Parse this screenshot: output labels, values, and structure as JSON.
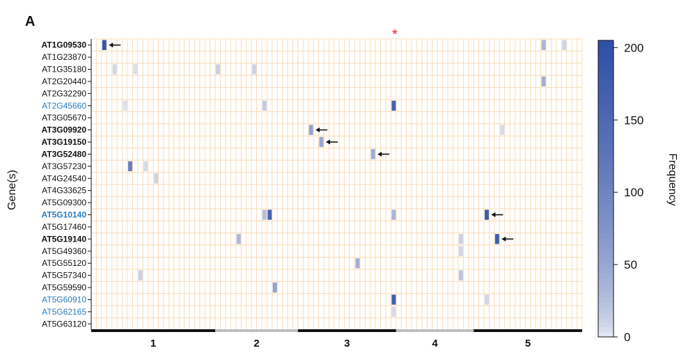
{
  "panel_letter": "A",
  "star_marker": "*",
  "colors": {
    "grid": "#f9dcb8",
    "axis": "#111111",
    "chrom_dark": "#111111",
    "chrom_light": "#bdbdbd",
    "gene_blue": "#2b7bb9",
    "gene_black": "#111111",
    "arrow": "#111111",
    "star": "#e8202a",
    "scale_low": "#f2f3f7",
    "scale_high": "#2f4fa6"
  },
  "chart_data": {
    "type": "heatmap",
    "ylabel": "Gene(s)",
    "colorbar_label": "Frequency",
    "colorbar_ticks": [
      0,
      50,
      100,
      150,
      200
    ],
    "colorbar_range": [
      0,
      205
    ],
    "n_columns": 95,
    "genes": [
      {
        "name": "AT1G09530",
        "style": "bold",
        "color": "black"
      },
      {
        "name": "AT1G23870",
        "style": "normal",
        "color": "black"
      },
      {
        "name": "AT1G35180",
        "style": "normal",
        "color": "black"
      },
      {
        "name": "AT2G20440",
        "style": "normal",
        "color": "black"
      },
      {
        "name": "AT2G32290",
        "style": "normal",
        "color": "black"
      },
      {
        "name": "AT2G45660",
        "style": "normal",
        "color": "blue"
      },
      {
        "name": "AT3G05670",
        "style": "normal",
        "color": "black"
      },
      {
        "name": "AT3G09920",
        "style": "bold",
        "color": "black"
      },
      {
        "name": "AT3G19150",
        "style": "bold",
        "color": "black"
      },
      {
        "name": "AT3G52480",
        "style": "bold",
        "color": "black"
      },
      {
        "name": "AT3G57230",
        "style": "normal",
        "color": "black"
      },
      {
        "name": "AT4G24540",
        "style": "normal",
        "color": "black"
      },
      {
        "name": "AT4G33625",
        "style": "normal",
        "color": "black"
      },
      {
        "name": "AT5G09300",
        "style": "normal",
        "color": "black"
      },
      {
        "name": "AT5G10140",
        "style": "bold",
        "color": "blue"
      },
      {
        "name": "AT5G17460",
        "style": "normal",
        "color": "black"
      },
      {
        "name": "AT5G19140",
        "style": "bold",
        "color": "black"
      },
      {
        "name": "AT5G49360",
        "style": "normal",
        "color": "black"
      },
      {
        "name": "AT5G55120",
        "style": "normal",
        "color": "black"
      },
      {
        "name": "AT5G57340",
        "style": "normal",
        "color": "black"
      },
      {
        "name": "AT5G59590",
        "style": "normal",
        "color": "black"
      },
      {
        "name": "AT5G60910",
        "style": "normal",
        "color": "blue"
      },
      {
        "name": "AT5G62165",
        "style": "normal",
        "color": "blue"
      },
      {
        "name": "AT5G63120",
        "style": "normal",
        "color": "black"
      }
    ],
    "chromosomes": [
      {
        "label": "1",
        "start_col": 0,
        "end_col": 23,
        "shade": "dark"
      },
      {
        "label": "2",
        "start_col": 24,
        "end_col": 39,
        "shade": "light"
      },
      {
        "label": "3",
        "start_col": 40,
        "end_col": 58,
        "shade": "dark"
      },
      {
        "label": "4",
        "start_col": 59,
        "end_col": 73,
        "shade": "light"
      },
      {
        "label": "5",
        "start_col": 74,
        "end_col": 94,
        "shade": "dark"
      }
    ],
    "star_col": 58,
    "cells": [
      {
        "gene": 0,
        "col": 2,
        "value": 190,
        "arrow": true
      },
      {
        "gene": 0,
        "col": 87,
        "value": 35
      },
      {
        "gene": 0,
        "col": 91,
        "value": 10
      },
      {
        "gene": 2,
        "col": 4,
        "value": 8
      },
      {
        "gene": 2,
        "col": 24,
        "value": 12
      },
      {
        "gene": 2,
        "col": 31,
        "value": 10
      },
      {
        "gene": 2,
        "col": 8,
        "value": 5
      },
      {
        "gene": 3,
        "col": 87,
        "value": 40
      },
      {
        "gene": 5,
        "col": 33,
        "value": 15
      },
      {
        "gene": 5,
        "col": 58,
        "value": 165
      },
      {
        "gene": 5,
        "col": 6,
        "value": 4
      },
      {
        "gene": 7,
        "col": 42,
        "value": 55,
        "arrow": true
      },
      {
        "gene": 7,
        "col": 79,
        "value": 6
      },
      {
        "gene": 8,
        "col": 44,
        "value": 50,
        "arrow": true
      },
      {
        "gene": 9,
        "col": 54,
        "value": 45,
        "arrow": true
      },
      {
        "gene": 10,
        "col": 7,
        "value": 110
      },
      {
        "gene": 10,
        "col": 10,
        "value": 6
      },
      {
        "gene": 11,
        "col": 12,
        "value": 10
      },
      {
        "gene": 14,
        "col": 33,
        "value": 25
      },
      {
        "gene": 14,
        "col": 34,
        "value": 160
      },
      {
        "gene": 14,
        "col": 58,
        "value": 35
      },
      {
        "gene": 14,
        "col": 76,
        "value": 175,
        "arrow": true
      },
      {
        "gene": 16,
        "col": 28,
        "value": 30
      },
      {
        "gene": 16,
        "col": 71,
        "value": 12
      },
      {
        "gene": 16,
        "col": 78,
        "value": 175,
        "arrow": true
      },
      {
        "gene": 17,
        "col": 71,
        "value": 8
      },
      {
        "gene": 18,
        "col": 51,
        "value": 40
      },
      {
        "gene": 19,
        "col": 9,
        "value": 12
      },
      {
        "gene": 19,
        "col": 71,
        "value": 20
      },
      {
        "gene": 20,
        "col": 35,
        "value": 55
      },
      {
        "gene": 21,
        "col": 58,
        "value": 170
      },
      {
        "gene": 21,
        "col": 76,
        "value": 8
      },
      {
        "gene": 22,
        "col": 58,
        "value": 6
      }
    ]
  }
}
